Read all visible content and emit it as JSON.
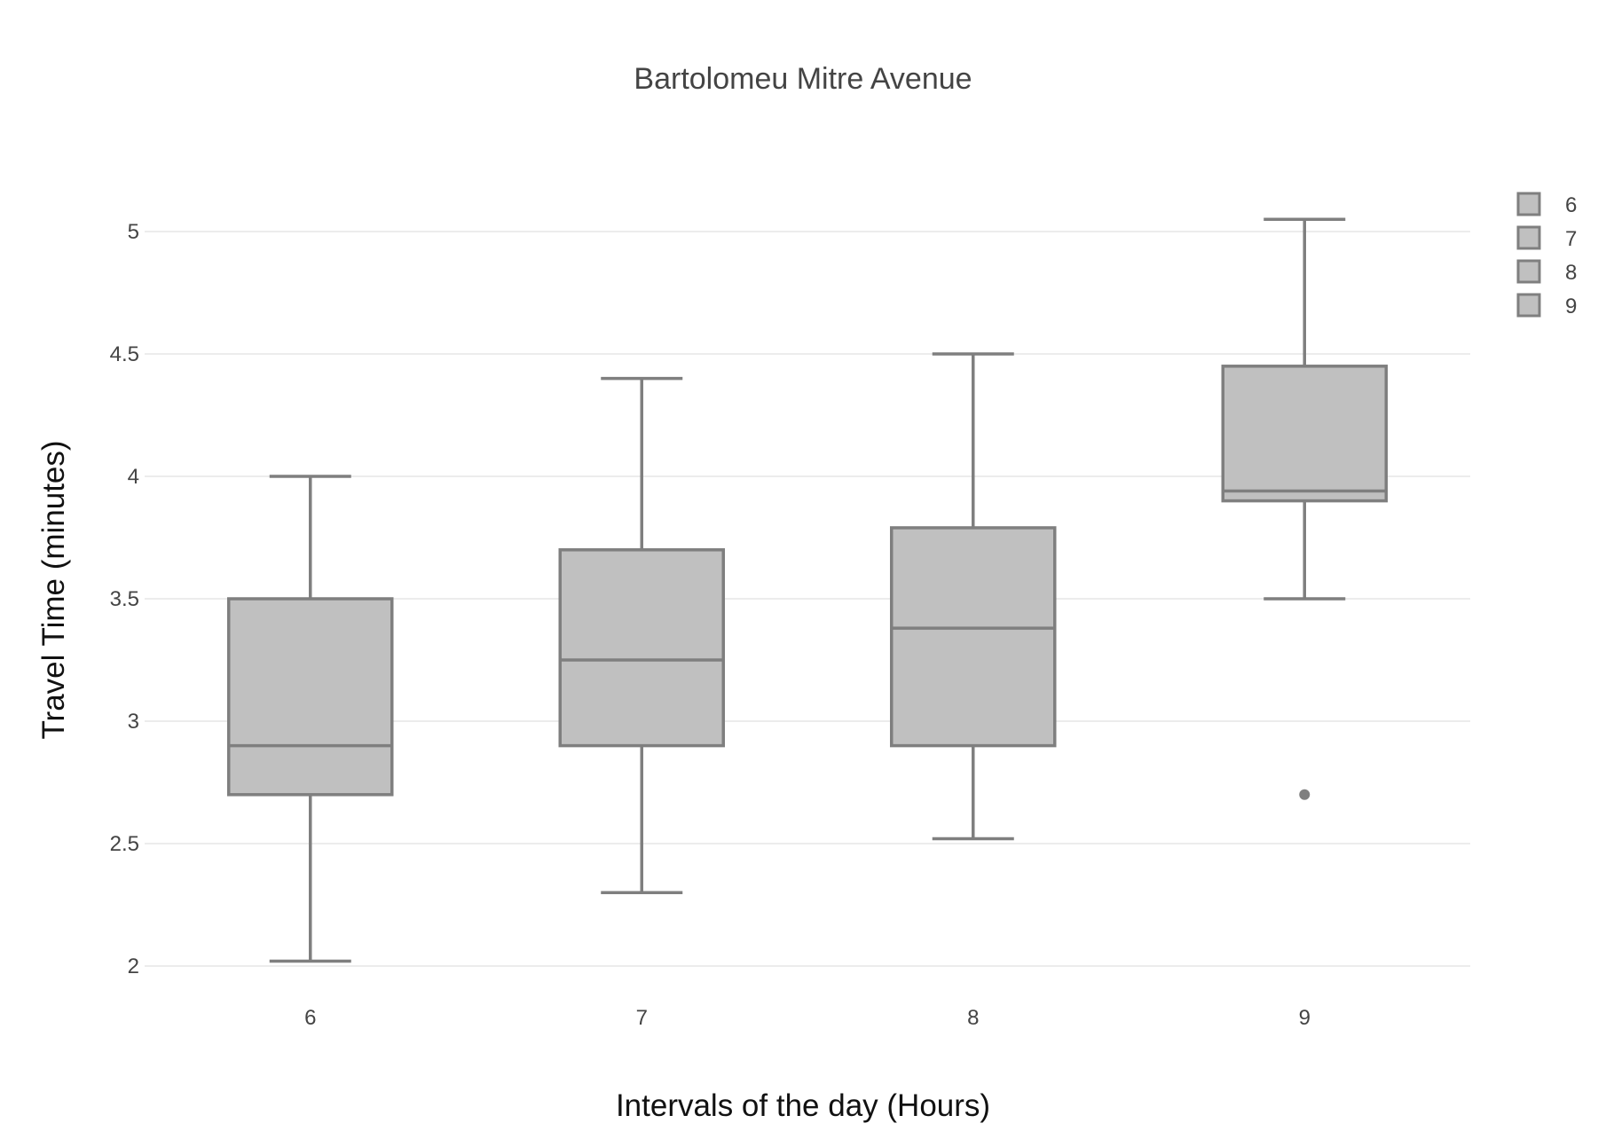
{
  "chart_data": {
    "type": "box",
    "title": "Bartolomeu Mitre Avenue",
    "xlabel": "Intervals of the day (Hours)",
    "ylabel": "Travel Time (minutes)",
    "categories": [
      "6",
      "7",
      "8",
      "9"
    ],
    "yticks": [
      "2",
      "2.5",
      "3",
      "3.5",
      "4",
      "4.5",
      "5"
    ],
    "ytick_values": [
      2,
      2.5,
      3,
      3.5,
      4,
      4.5,
      5
    ],
    "ylim": [
      1.88,
      5.22
    ],
    "grid": true,
    "legend_position": "top-right",
    "legend": [
      "6",
      "7",
      "8",
      "9"
    ],
    "box_fill": "#c0c0c0",
    "box_line": "#7f7f7f",
    "series": [
      {
        "category": "6",
        "min": 2.02,
        "q1": 2.7,
        "median": 2.9,
        "q3": 3.5,
        "max": 4.0,
        "outliers": []
      },
      {
        "category": "7",
        "min": 2.3,
        "q1": 2.9,
        "median": 3.25,
        "q3": 3.7,
        "max": 4.4,
        "outliers": []
      },
      {
        "category": "8",
        "min": 2.52,
        "q1": 2.9,
        "median": 3.38,
        "q3": 3.79,
        "max": 4.5,
        "outliers": []
      },
      {
        "category": "9",
        "min": 3.5,
        "q1": 3.9,
        "median": 3.94,
        "q3": 4.45,
        "max": 5.05,
        "outliers": [
          2.7
        ]
      }
    ]
  }
}
